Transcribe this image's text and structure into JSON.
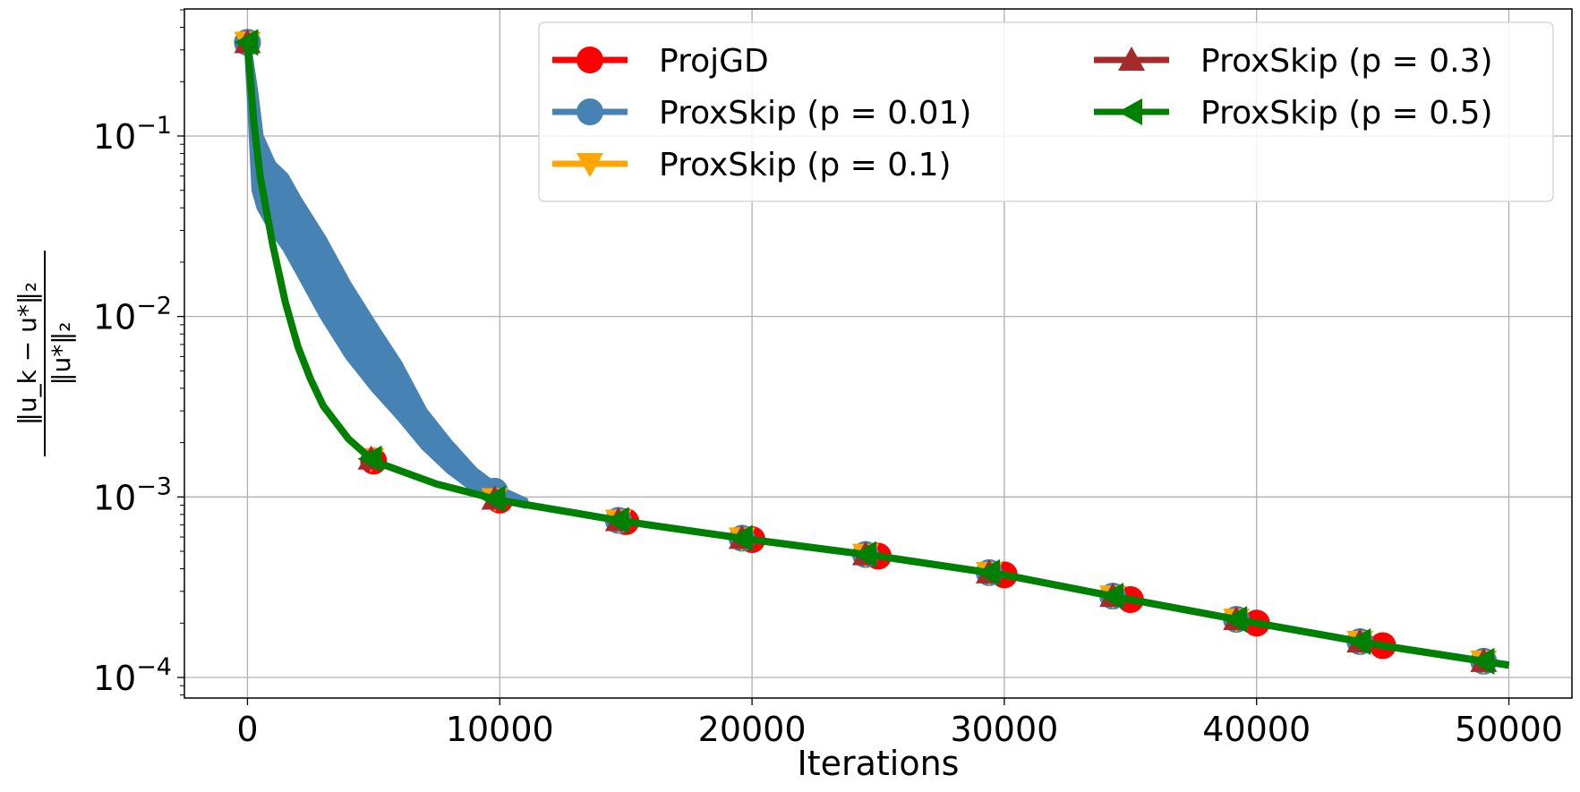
{
  "chart_data": {
    "type": "line",
    "title": "",
    "xlabel": "Iterations",
    "ylabel": {
      "numerator": "‖u_k − u*‖₂",
      "denominator": "‖u*‖₂"
    },
    "xscale": "linear",
    "yscale": "log",
    "xlim": [
      -2500,
      52500
    ],
    "ylim_log10": [
      -4.114,
      -0.296
    ],
    "grid": true,
    "legend_position": "top-right",
    "legend_columns": 2,
    "xticks": [
      {
        "value": 0,
        "label": "0"
      },
      {
        "value": 10000,
        "label": "10000"
      },
      {
        "value": 20000,
        "label": "20000"
      },
      {
        "value": 30000,
        "label": "30000"
      },
      {
        "value": 40000,
        "label": "40000"
      },
      {
        "value": 50000,
        "label": "50000"
      }
    ],
    "yticks": [
      {
        "value": 0.1,
        "base": "10",
        "exp": "−1"
      },
      {
        "value": 0.01,
        "base": "10",
        "exp": "−2"
      },
      {
        "value": 0.001,
        "base": "10",
        "exp": "−3"
      },
      {
        "value": 0.0001,
        "base": "10",
        "exp": "−4"
      }
    ],
    "main_curve": {
      "x": [
        0,
        250,
        500,
        1000,
        1500,
        2000,
        2500,
        3000,
        4000,
        5000,
        7500,
        10000,
        15000,
        20000,
        25000,
        30000,
        35000,
        40000,
        45000,
        50000
      ],
      "y": [
        0.33,
        0.12,
        0.06,
        0.025,
        0.012,
        0.0068,
        0.0045,
        0.0032,
        0.0021,
        0.00158,
        0.00118,
        0.00096,
        0.00073,
        0.00058,
        0.00047,
        0.00037,
        0.00027,
        0.0002,
        0.00015,
        0.000117
      ]
    },
    "noisy_band_p001": {
      "x": [
        0,
        300,
        500,
        1000,
        1500,
        2000,
        3000,
        4000,
        5000,
        6000,
        7000,
        8000,
        9000,
        10000,
        11000
      ],
      "upper": [
        0.33,
        0.17,
        0.1,
        0.07,
        0.06,
        0.045,
        0.027,
        0.015,
        0.009,
        0.0055,
        0.003,
        0.002,
        0.0014,
        0.0011,
        0.00095
      ],
      "lower": [
        0.33,
        0.05,
        0.04,
        0.03,
        0.024,
        0.018,
        0.01,
        0.006,
        0.004,
        0.0028,
        0.0019,
        0.0014,
        0.0011,
        0.00098,
        0.0009
      ]
    },
    "series": [
      {
        "name": "ProjGD",
        "color": "#ff0000",
        "marker": "circle",
        "curve": "main",
        "marker_x": [
          0,
          5000,
          10000,
          15000,
          20000,
          25000,
          30000,
          35000,
          40000,
          45000
        ]
      },
      {
        "name": "ProxSkip (p = 0.01)",
        "color": "#4682b4",
        "marker": "circle",
        "curve": "noisy",
        "marker_x": [
          0,
          4900,
          9800,
          14700,
          19600,
          24500,
          29400,
          34300,
          39200,
          44100,
          49000
        ]
      },
      {
        "name": "ProxSkip (p = 0.1)",
        "color": "#ffa500",
        "marker": "triangle-down",
        "curve": "main",
        "marker_x": [
          0,
          4900,
          9800,
          14700,
          19600,
          24500,
          29400,
          34300,
          39200,
          44100,
          49000
        ]
      },
      {
        "name": "ProxSkip (p = 0.3)",
        "color": "#a52a2a",
        "marker": "triangle-up",
        "curve": "main",
        "marker_x": [
          0,
          4900,
          9800,
          14700,
          19600,
          24500,
          29400,
          34300,
          39200,
          44100,
          49000
        ]
      },
      {
        "name": "ProxSkip (p = 0.5)",
        "color": "#008000",
        "marker": "triangle-left",
        "curve": "main",
        "marker_x": [
          0,
          4900,
          9800,
          14700,
          19600,
          24500,
          29400,
          34300,
          39200,
          44100,
          49000
        ]
      }
    ]
  }
}
